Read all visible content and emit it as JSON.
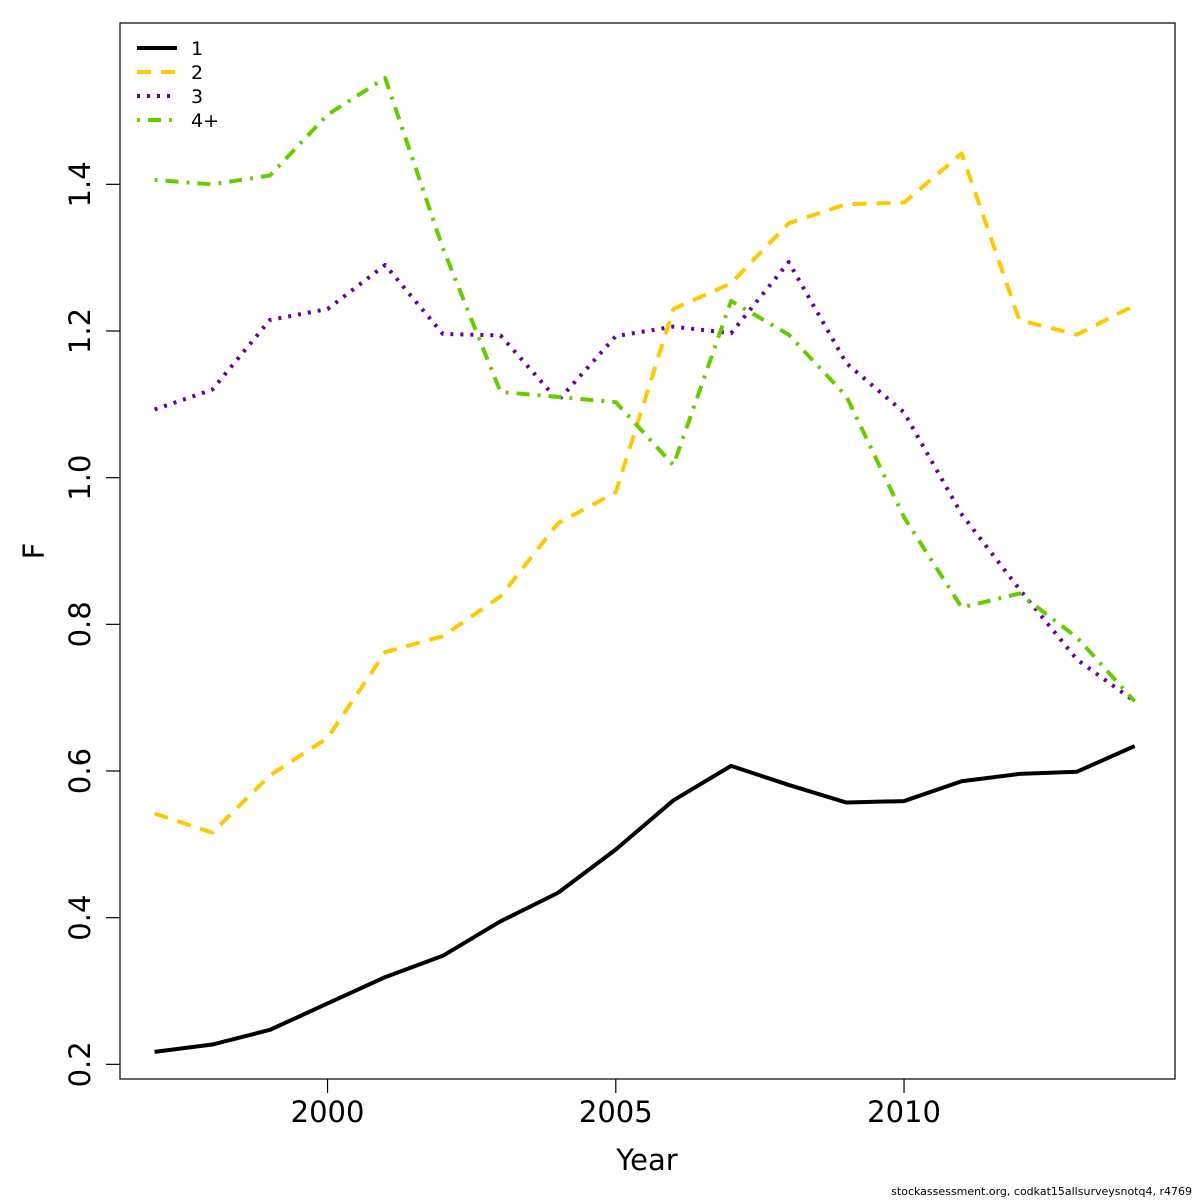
{
  "chart_data": {
    "type": "line",
    "title": "",
    "xlabel": "Year",
    "ylabel": "F",
    "xlim": [
      1996.4,
      2014.7
    ],
    "ylim": [
      0.18,
      1.62
    ],
    "x_ticks": [
      2000,
      2005,
      2010
    ],
    "y_ticks": [
      0.2,
      0.4,
      0.6,
      0.8,
      1.0,
      1.2,
      1.4
    ],
    "y_tick_labels": [
      "0.2",
      "0.4",
      "0.6",
      "0.8",
      "1.0",
      "1.2",
      "1.4"
    ],
    "legend_position": "top-left",
    "grid": false,
    "x": [
      1997,
      1998,
      1999,
      2000,
      2001,
      2002,
      2003,
      2004,
      2005,
      2006,
      2007,
      2008,
      2009,
      2010,
      2011,
      2012,
      2013,
      2014
    ],
    "series": [
      {
        "name": "1",
        "color": "#000000",
        "dash": "solid",
        "values": [
          0.217,
          0.227,
          0.247,
          0.283,
          0.319,
          0.348,
          0.395,
          0.434,
          0.493,
          0.56,
          0.607,
          0.581,
          0.557,
          0.559,
          0.586,
          0.596,
          0.599,
          0.634
        ]
      },
      {
        "name": "2",
        "color": "#FFC800",
        "dash": "dashed",
        "values": [
          0.542,
          0.516,
          0.594,
          0.645,
          0.762,
          0.784,
          0.838,
          0.938,
          0.98,
          1.23,
          1.265,
          1.347,
          1.373,
          1.375,
          1.442,
          1.215,
          1.195,
          1.235
        ]
      },
      {
        "name": "3",
        "color": "#660099",
        "dash": "dotted",
        "values": [
          1.093,
          1.12,
          1.215,
          1.23,
          1.29,
          1.196,
          1.194,
          1.105,
          1.193,
          1.206,
          1.197,
          1.294,
          1.156,
          1.089,
          0.95,
          0.848,
          0.752,
          0.695
        ]
      },
      {
        "name": "4+",
        "color": "#66CC00",
        "dash": "dotdash",
        "values": [
          1.406,
          1.4,
          1.412,
          1.495,
          1.545,
          1.313,
          1.117,
          1.11,
          1.103,
          1.017,
          1.241,
          1.195,
          1.111,
          0.946,
          0.823,
          0.842,
          0.782,
          0.695
        ]
      }
    ]
  },
  "footer_text": "stockassessment.org, codkat15allsurveysnotq4, r4769"
}
